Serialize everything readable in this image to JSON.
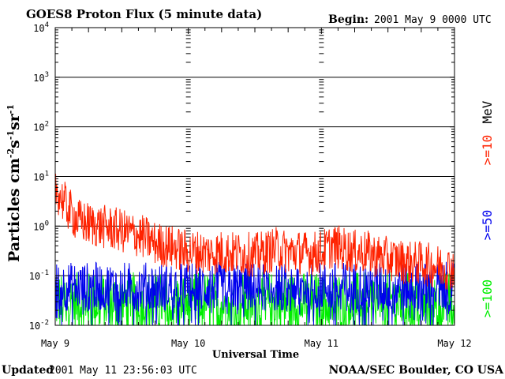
{
  "header": {
    "title": "GOES8 Proton Flux (5 minute data)",
    "begin_label": "Begin:",
    "begin_value": "2001 May 9 0000 UTC"
  },
  "footer": {
    "updated_label": "Updated",
    "updated_value": "2001 May 11 23:56:03 UTC",
    "source": "NOAA/SEC Boulder, CO USA"
  },
  "chart_data": {
    "type": "line",
    "title": "GOES8 Proton Flux (5 minute data)",
    "xlabel": "Universal Time",
    "ylabel": "Particles cm-2s-1sr-1",
    "y_scale": "log",
    "ylim": [
      0.01,
      10000
    ],
    "x_ticks": [
      "May 9",
      "May 10",
      "May 11",
      "May 12"
    ],
    "y_ticks": [
      {
        "value": 0.01,
        "base": "10",
        "exp": "-2"
      },
      {
        "value": 0.1,
        "base": "10",
        "exp": "-1"
      },
      {
        "value": 1,
        "base": "10",
        "exp": "0"
      },
      {
        "value": 10,
        "base": "10",
        "exp": "1"
      },
      {
        "value": 100,
        "base": "10",
        "exp": "2"
      },
      {
        "value": 1000,
        "base": "10",
        "exp": "3"
      },
      {
        "value": 10000,
        "base": "10",
        "exp": "4"
      }
    ],
    "grid": true,
    "legend_unit": "MeV",
    "x_hours": [
      0,
      2,
      4,
      6,
      8,
      10,
      12,
      14,
      16,
      18,
      20,
      22,
      24,
      26,
      28,
      30,
      32,
      34,
      36,
      38,
      40,
      42,
      44,
      46,
      48,
      50,
      52,
      54,
      56,
      58,
      60,
      62,
      64,
      66,
      68,
      70,
      72
    ],
    "series": [
      {
        "name": ">=10",
        "color": "#ff2200",
        "values": [
          6.0,
          2.5,
          1.3,
          1.1,
          1.0,
          0.9,
          0.8,
          0.7,
          0.6,
          0.45,
          0.4,
          0.35,
          0.3,
          0.3,
          0.28,
          0.3,
          0.28,
          0.28,
          0.26,
          0.3,
          0.35,
          0.3,
          0.3,
          0.28,
          0.3,
          0.4,
          0.35,
          0.3,
          0.3,
          0.25,
          0.22,
          0.2,
          0.18,
          0.18,
          0.16,
          0.15,
          0.14
        ]
      },
      {
        "name": ">=50",
        "color": "#0000ee",
        "values": [
          0.06,
          0.06,
          0.06,
          0.06,
          0.06,
          0.06,
          0.06,
          0.06,
          0.06,
          0.06,
          0.06,
          0.06,
          0.06,
          0.06,
          0.06,
          0.06,
          0.06,
          0.06,
          0.06,
          0.06,
          0.06,
          0.06,
          0.06,
          0.06,
          0.06,
          0.06,
          0.06,
          0.06,
          0.06,
          0.06,
          0.06,
          0.06,
          0.06,
          0.06,
          0.06,
          0.06,
          0.06
        ]
      },
      {
        "name": ">=100",
        "color": "#00ee00",
        "values": [
          0.03,
          0.03,
          0.03,
          0.03,
          0.03,
          0.03,
          0.03,
          0.03,
          0.03,
          0.03,
          0.03,
          0.03,
          0.03,
          0.03,
          0.03,
          0.03,
          0.03,
          0.03,
          0.03,
          0.03,
          0.03,
          0.03,
          0.03,
          0.03,
          0.03,
          0.03,
          0.03,
          0.03,
          0.03,
          0.03,
          0.03,
          0.03,
          0.03,
          0.03,
          0.03,
          0.03,
          0.03
        ]
      }
    ]
  }
}
